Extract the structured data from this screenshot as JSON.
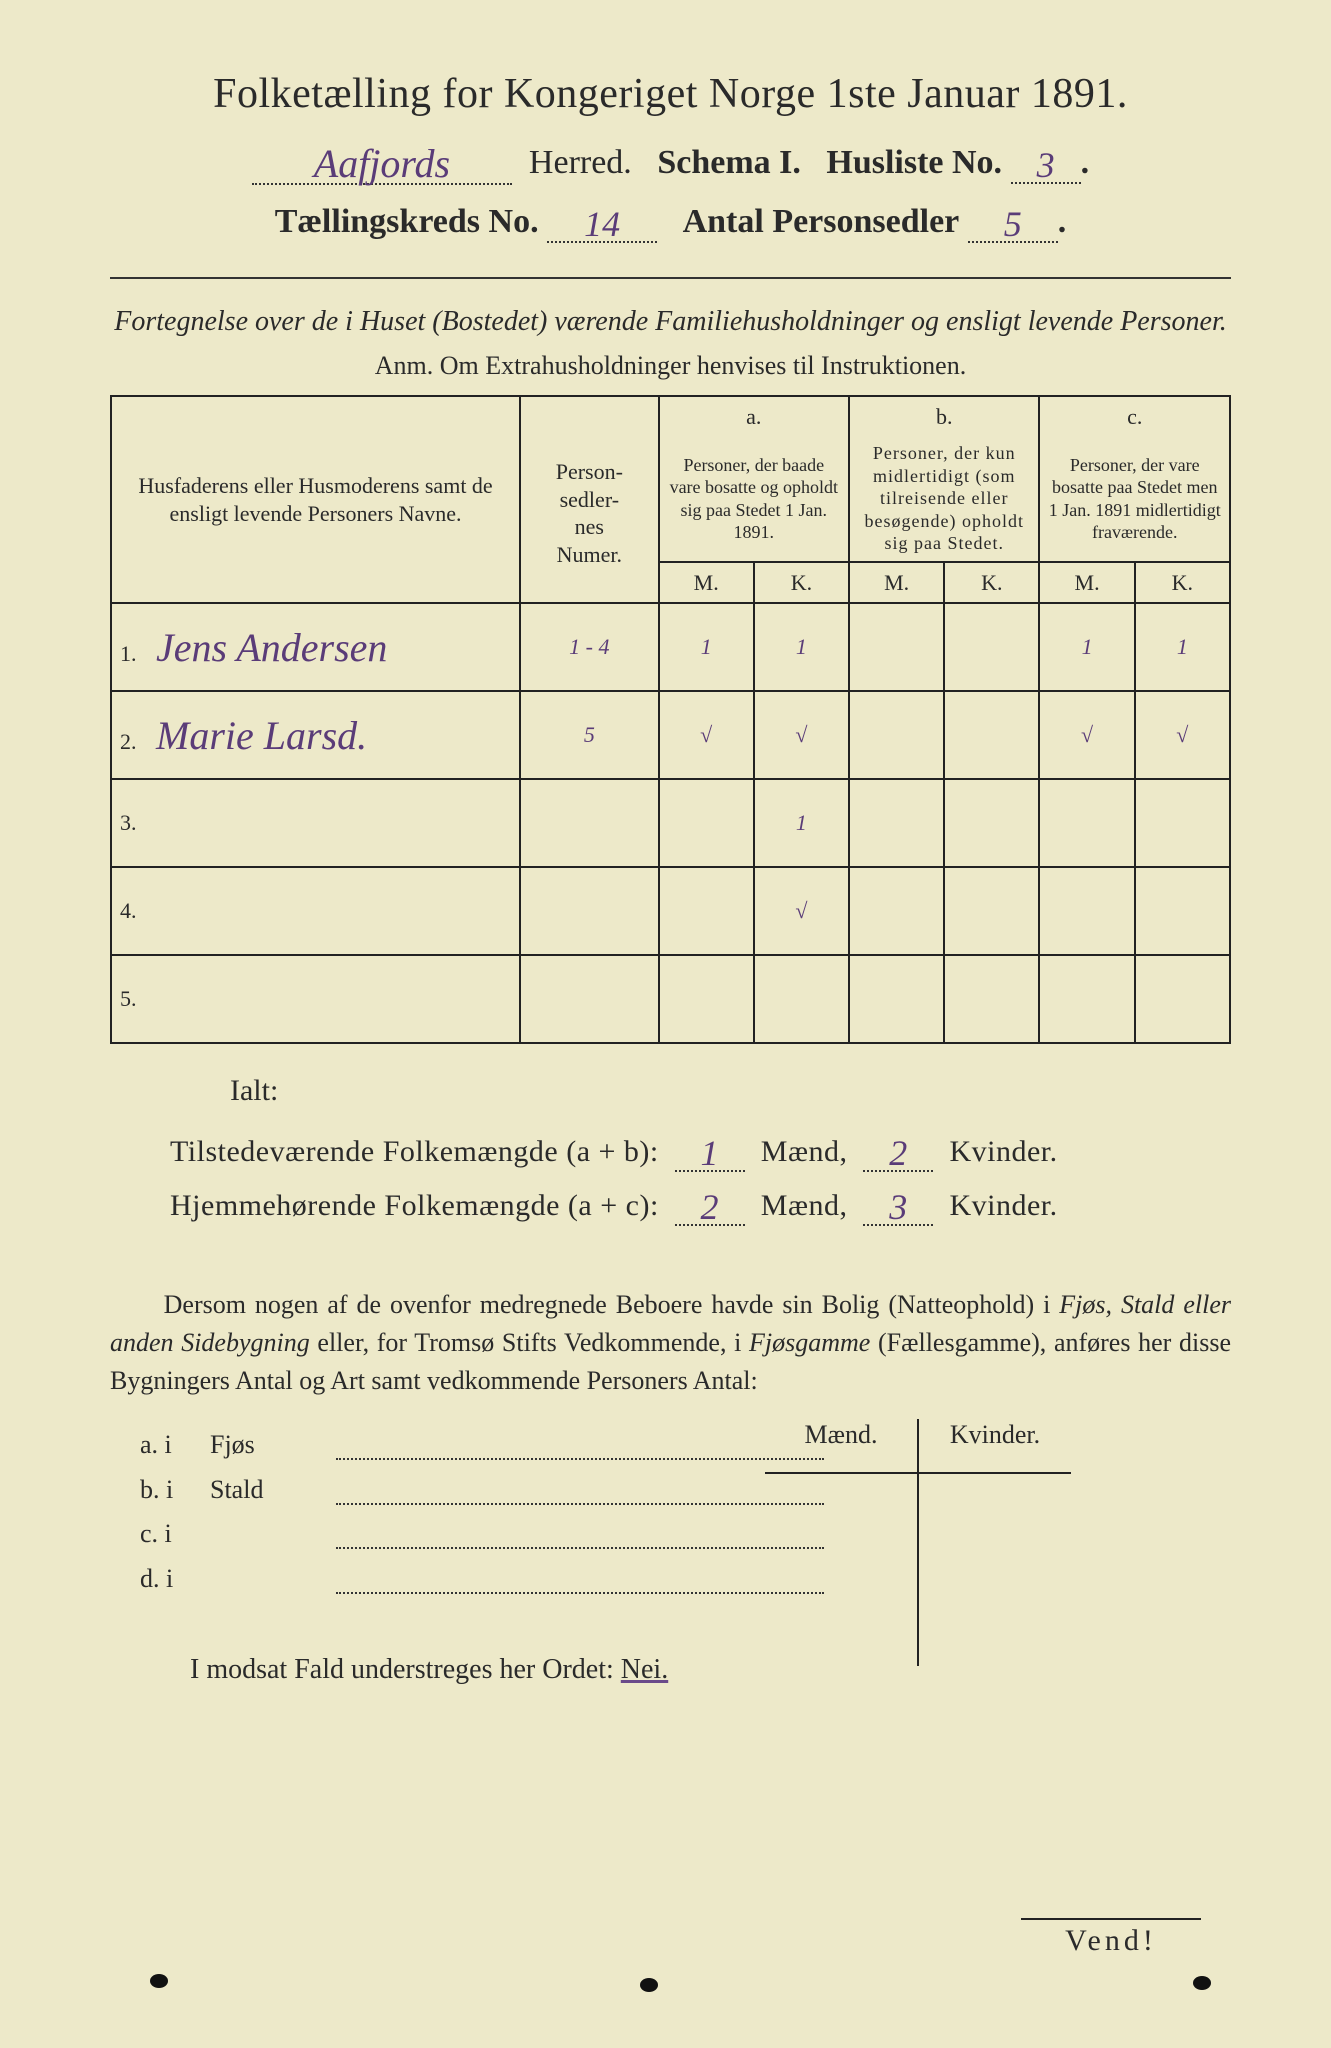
{
  "header": {
    "title": "Folketælling for Kongeriget Norge 1ste Januar 1891.",
    "herred_label": "Herred.",
    "herred_value": "Aafjords",
    "schema_label": "Schema I.",
    "husliste_label": "Husliste No.",
    "husliste_value": "3",
    "kreds_label": "Tællingskreds No.",
    "kreds_value": "14",
    "personsedler_label": "Antal Personsedler",
    "personsedler_value": "5"
  },
  "subtitle": "Fortegnelse over de i Huset (Bostedet) værende Familiehusholdninger og ensligt levende Personer.",
  "anm": "Anm. Om Extrahusholdninger henvises til Instruktionen.",
  "table": {
    "columns": {
      "name": "Husfaderens eller Husmoderens samt de ensligt levende Personers Navne.",
      "num": "Person-\nsedler-\nnes\nNumer.",
      "a_label": "a.",
      "a": "Personer, der baade vare bosatte og opholdt sig paa Stedet 1 Jan. 1891.",
      "b_label": "b.",
      "b": "Personer, der kun midlertidigt (som tilreisende eller besøgende) opholdt sig paa Stedet.",
      "c_label": "c.",
      "c": "Personer, der vare bosatte paa Stedet men 1 Jan. 1891 midlertidigt fraværende.",
      "m": "M.",
      "k": "K."
    },
    "rows": [
      {
        "n": "1.",
        "name": "Jens Andersen",
        "num": "1 - 4",
        "a_m": "1",
        "a_k": "1",
        "b_m": "",
        "b_k": "",
        "c_m": "1",
        "c_k": "1"
      },
      {
        "n": "2.",
        "name": "Marie Larsd.",
        "num": "5",
        "a_m": "√",
        "a_k": "√",
        "b_m": "",
        "b_k": "",
        "c_m": "√",
        "c_k": "√"
      },
      {
        "n": "3.",
        "name": "",
        "num": "",
        "a_m": "",
        "a_k": "1",
        "b_m": "",
        "b_k": "",
        "c_m": "",
        "c_k": ""
      },
      {
        "n": "4.",
        "name": "",
        "num": "",
        "a_m": "",
        "a_k": "√",
        "b_m": "",
        "b_k": "",
        "c_m": "",
        "c_k": ""
      },
      {
        "n": "5.",
        "name": "",
        "num": "",
        "a_m": "",
        "a_k": "",
        "b_m": "",
        "b_k": "",
        "c_m": "",
        "c_k": ""
      }
    ]
  },
  "totals": {
    "ialt": "Ialt:",
    "line1_label": "Tilstedeværende Folkemængde (a + b):",
    "line1_m": "1",
    "line1_k": "2",
    "line2_label": "Hjemmehørende Folkemængde (a + c):",
    "line2_m": "2",
    "line2_k": "3",
    "maend": "Mænd,",
    "kvinder": "Kvinder."
  },
  "para": {
    "text_a": "Dersom nogen af de ovenfor medregnede Beboere havde sin Bolig (Natteophold) i ",
    "ital_1": "Fjøs, Stald eller anden Sidebygning",
    "text_b": " eller, for Tromsø Stifts Vedkommende, i ",
    "ital_2": "Fjøsgamme",
    "text_c": " (Fællesgamme), anføres her disse Bygningers Antal og Art samt vedkommende Personers Antal:"
  },
  "sublist": {
    "maend": "Mænd.",
    "kvinder": "Kvinder.",
    "rows": [
      {
        "lead": "a.  i",
        "label": "Fjøs"
      },
      {
        "lead": "b.  i",
        "label": "Stald"
      },
      {
        "lead": "c.  i",
        "label": ""
      },
      {
        "lead": "d.  i",
        "label": ""
      }
    ]
  },
  "modsat": "I modsat Fald understreges her Ordet:",
  "nei": "Nei.",
  "vend": "Vend!",
  "colors": {
    "paper": "#ede9c9",
    "ink": "#2a2a2a",
    "handwriting": "#5a3c78"
  }
}
